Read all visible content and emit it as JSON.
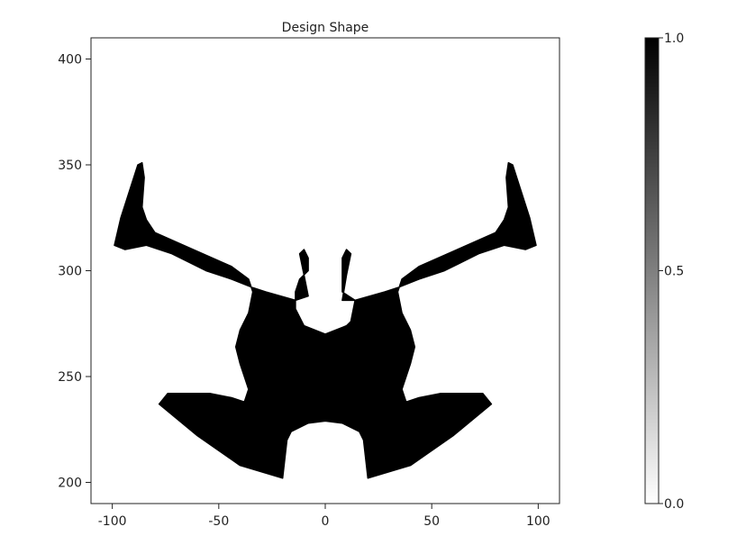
{
  "chart_data": {
    "type": "heatmap",
    "title": "Design Shape",
    "xlabel": "",
    "ylabel": "",
    "xlim": [
      -110,
      110
    ],
    "ylim": [
      190,
      410
    ],
    "xticks": [
      -100,
      -50,
      0,
      50,
      100
    ],
    "yticks": [
      200,
      250,
      300,
      350,
      400
    ],
    "xtick_labels": [
      "-100",
      "-50",
      "0",
      "50",
      "100"
    ],
    "ytick_labels": [
      "200",
      "250",
      "300",
      "350",
      "400"
    ],
    "grid": false,
    "colormap": "grays",
    "color_low": "#ffffff",
    "color_high": "#000000",
    "colorbar": {
      "range": [
        0.0,
        1.0
      ],
      "ticks": [
        0.0,
        0.5,
        1.0
      ],
      "tick_labels": [
        "0.0",
        "0.5",
        "1.0"
      ]
    },
    "shape": {
      "fill_value": 1.0,
      "outline": [
        [
          -20,
          202
        ],
        [
          -18,
          220
        ],
        [
          -16,
          224
        ],
        [
          -8,
          228
        ],
        [
          0,
          229
        ],
        [
          8,
          228
        ],
        [
          16,
          224
        ],
        [
          18,
          220
        ],
        [
          20,
          202
        ],
        [
          40,
          208
        ],
        [
          60,
          222
        ],
        [
          78,
          237
        ],
        [
          74,
          242
        ],
        [
          66,
          242
        ],
        [
          54,
          242
        ],
        [
          44,
          240
        ],
        [
          38,
          238
        ],
        [
          36,
          244
        ],
        [
          38,
          250
        ],
        [
          40,
          256
        ],
        [
          42,
          264
        ],
        [
          40,
          272
        ],
        [
          36,
          280
        ],
        [
          34,
          290
        ],
        [
          36,
          296
        ],
        [
          44,
          302
        ],
        [
          62,
          310
        ],
        [
          80,
          318
        ],
        [
          84,
          324
        ],
        [
          86,
          330
        ],
        [
          85,
          344
        ],
        [
          86,
          351
        ],
        [
          88,
          350
        ],
        [
          96,
          325
        ],
        [
          99,
          312
        ],
        [
          94,
          310
        ],
        [
          84,
          312
        ],
        [
          72,
          308
        ],
        [
          56,
          300
        ],
        [
          44,
          296
        ],
        [
          34,
          292
        ],
        [
          28,
          290
        ],
        [
          14,
          286
        ],
        [
          8,
          286
        ],
        [
          10,
          298
        ],
        [
          12,
          308
        ],
        [
          10,
          310
        ],
        [
          8,
          306
        ],
        [
          8,
          302
        ],
        [
          8,
          290
        ],
        [
          11,
          288
        ],
        [
          14,
          286
        ],
        [
          14,
          286
        ],
        [
          12,
          276
        ],
        [
          10,
          274
        ],
        [
          0,
          270
        ],
        [
          -10,
          274
        ],
        [
          -14,
          282
        ],
        [
          -14,
          290
        ],
        [
          -12,
          296
        ],
        [
          -8,
          300
        ],
        [
          -8,
          306
        ],
        [
          -10,
          310
        ],
        [
          -12,
          308
        ],
        [
          -10,
          298
        ],
        [
          -8,
          288
        ],
        [
          -14,
          286
        ],
        [
          -28,
          290
        ],
        [
          -34,
          292
        ],
        [
          -44,
          296
        ],
        [
          -56,
          300
        ],
        [
          -72,
          308
        ],
        [
          -84,
          312
        ],
        [
          -94,
          310
        ],
        [
          -99,
          312
        ],
        [
          -96,
          325
        ],
        [
          -88,
          350
        ],
        [
          -86,
          351
        ],
        [
          -85,
          344
        ],
        [
          -86,
          330
        ],
        [
          -84,
          324
        ],
        [
          -80,
          318
        ],
        [
          -62,
          310
        ],
        [
          -44,
          302
        ],
        [
          -36,
          296
        ],
        [
          -34,
          290
        ],
        [
          -36,
          280
        ],
        [
          -40,
          272
        ],
        [
          -42,
          264
        ],
        [
          -40,
          256
        ],
        [
          -38,
          250
        ],
        [
          -36,
          244
        ],
        [
          -38,
          238
        ],
        [
          -44,
          240
        ],
        [
          -54,
          242
        ],
        [
          -66,
          242
        ],
        [
          -74,
          242
        ],
        [
          -78,
          237
        ],
        [
          -60,
          222
        ],
        [
          -40,
          208
        ]
      ]
    }
  },
  "colors": {
    "frame": "#222222",
    "shape_fill": "#000000",
    "background": "#ffffff"
  }
}
